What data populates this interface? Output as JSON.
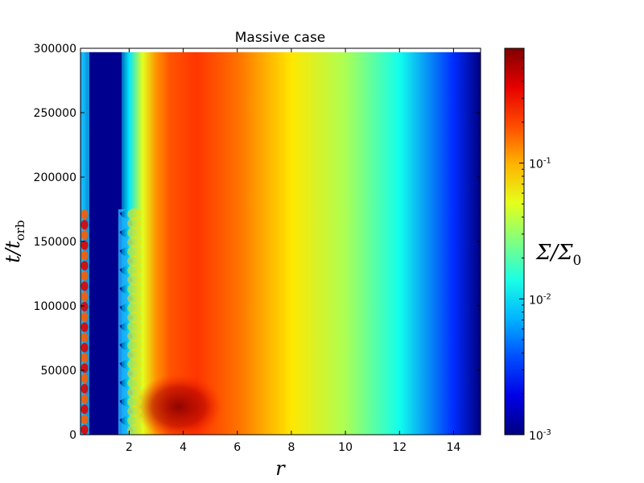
{
  "chart_data": {
    "type": "heatmap",
    "title": "Massive case",
    "xlabel": "r",
    "ylabel": "t/t_orb",
    "ylabel_parts": {
      "main": "t/t",
      "sub": "orb"
    },
    "xlim": [
      0.2,
      15
    ],
    "ylim": [
      0,
      300000
    ],
    "data_y_max": 297000,
    "x_ticks": [
      2,
      4,
      6,
      8,
      10,
      12,
      14
    ],
    "x_tick_labels": [
      "2",
      "4",
      "6",
      "8",
      "10",
      "12",
      "14"
    ],
    "y_ticks": [
      0,
      50000,
      100000,
      150000,
      200000,
      250000,
      300000
    ],
    "y_tick_labels": [
      "0",
      "50000",
      "100000",
      "150000",
      "200000",
      "250000",
      "300000"
    ],
    "colormap": "jet",
    "colorbar": {
      "label": "Σ/Σ0",
      "label_parts": {
        "main": "Σ/Σ",
        "sub": "0"
      },
      "scale": "log",
      "range": [
        0.001,
        0.7
      ],
      "ticks": [
        0.001,
        0.01,
        0.1
      ],
      "tick_labels": [
        {
          "base": "10",
          "exp": "-3"
        },
        {
          "base": "10",
          "exp": "-2"
        },
        {
          "base": "10",
          "exp": "-1"
        }
      ]
    },
    "profile": [
      {
        "r": 0.3,
        "sigma": 0.006
      },
      {
        "r": 0.45,
        "sigma": 0.001
      },
      {
        "r": 1.5,
        "sigma": 0.001
      },
      {
        "r": 2.0,
        "sigma": 0.01
      },
      {
        "r": 2.5,
        "sigma": 0.05
      },
      {
        "r": 3.0,
        "sigma": 0.12
      },
      {
        "r": 3.5,
        "sigma": 0.18
      },
      {
        "r": 4.5,
        "sigma": 0.22
      },
      {
        "r": 6.0,
        "sigma": 0.15
      },
      {
        "r": 8.0,
        "sigma": 0.07
      },
      {
        "r": 10.0,
        "sigma": 0.035
      },
      {
        "r": 12.0,
        "sigma": 0.013
      },
      {
        "r": 14.0,
        "sigma": 0.003
      },
      {
        "r": 15.0,
        "sigma": 0.001
      }
    ]
  }
}
